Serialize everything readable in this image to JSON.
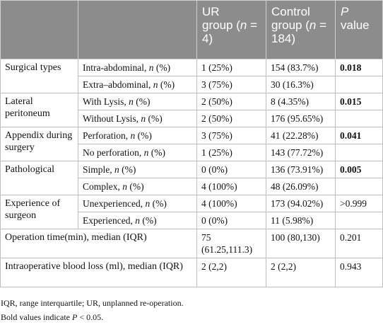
{
  "table": {
    "header": [
      [
        "UR",
        " group (",
        "n",
        " = 4)"
      ],
      [
        "Control group (",
        "n",
        " = 184)"
      ],
      [
        "P",
        " value"
      ]
    ],
    "groups": [
      {
        "name": "Surgical types",
        "rows": [
          {
            "label": [
              "Intra-abdominal, ",
              "n",
              " (%)"
            ],
            "ur": "1 (25%)",
            "control": "154 (83.7%)",
            "p": "0.018"
          },
          {
            "label": [
              "Extra–abdominal, ",
              "n",
              " (%)"
            ],
            "ur": "3 (75%)",
            "control": "30 (16.3%)"
          }
        ]
      },
      {
        "name": "Lateral peritoneum",
        "rows": [
          {
            "label": [
              "With Lysis, ",
              "n",
              " (%)"
            ],
            "ur": "2 (50%)",
            "control": "8 (4.35%)",
            "p": "0.015"
          },
          {
            "label": [
              "Without Lysis, ",
              "n",
              " (%)"
            ],
            "ur": "2 (50%)",
            "control": "176 (95.65%)"
          }
        ]
      },
      {
        "name": "Appendix during surgery",
        "rows": [
          {
            "label": [
              "Perforation, ",
              "n",
              " (%)"
            ],
            "ur": "3 (75%)",
            "control": "41 (22.28%)",
            "p": "0.041"
          },
          {
            "label": [
              "No perforation, ",
              "n",
              " (%)"
            ],
            "ur": "1 (25%)",
            "control": "143 (77.72%)"
          }
        ]
      },
      {
        "name": "Pathological",
        "rows": [
          {
            "label": [
              "Simple, ",
              "n",
              " (%)"
            ],
            "ur": "0 (0%)",
            "control": "136 (73.91%)",
            "p": "0.005"
          },
          {
            "label": [
              "Complex, ",
              "n",
              " (%)"
            ],
            "ur": "4 (100%)",
            "control": "48 (26.09%)"
          }
        ]
      },
      {
        "name": "Experience of surgeon",
        "rows": [
          {
            "label": [
              "Unexperienced, ",
              "n",
              " (%)"
            ],
            "ur": "4 (100%)",
            "control": "173 (94.02%)",
            "p": ">0.999"
          },
          {
            "label": [
              "Experienced, ",
              "n",
              " (%)"
            ],
            "ur": "0 (0%)",
            "control": "11 (5.98%)"
          }
        ]
      }
    ],
    "spanning": [
      {
        "label": "Operation time(min), median (IQR)",
        "ur": "75 (61.25,111.3)",
        "control": "100 (80,130)",
        "p": "0.201"
      },
      {
        "label": "Intraoperative blood loss (ml), median (IQR)",
        "ur": "2 (2,2)",
        "control": "2 (2,2)",
        "p": "0.943"
      }
    ],
    "footnotes": [
      "IQR, range interquartile; UR, unplanned re-operation.",
      [
        "Bold values indicate ",
        "P",
        " < 0.05."
      ]
    ]
  }
}
